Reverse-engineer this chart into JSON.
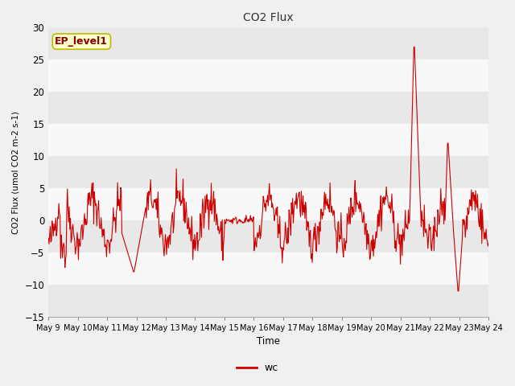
{
  "title": "CO2 Flux",
  "xlabel": "Time",
  "ylabel": "CO2 Flux (umol CO2 m-2 s-1)",
  "ylim": [
    -15,
    30
  ],
  "line_color": "#CC0000",
  "line_label": "wc",
  "annotation_text": "EP_level1",
  "fig_bg_color": "#f0f0f0",
  "plot_bg_color": "#f0f0f0",
  "x_tick_labels": [
    "May 9",
    "May 10",
    "May 11",
    "May 12",
    "May 13",
    "May 14",
    "May 15",
    "May 16",
    "May 17",
    "May 18",
    "May 19",
    "May 20",
    "May 21",
    "May 22",
    "May 23",
    "May 24"
  ],
  "yticks": [
    -15,
    -10,
    -5,
    0,
    5,
    10,
    15,
    20,
    25,
    30
  ],
  "band_colors": [
    "#e8e8e8",
    "#f8f8f8"
  ]
}
